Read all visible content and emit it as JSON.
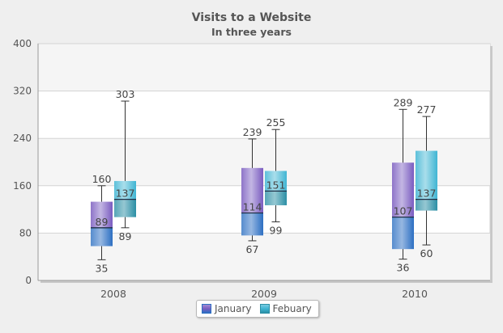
{
  "chart_data": {
    "type": "boxplot",
    "title": "Visits to a Website",
    "subtitle": "In three years",
    "xlabel": "",
    "ylabel": "",
    "ylim": [
      0,
      400
    ],
    "yticks": [
      0,
      80,
      160,
      240,
      320,
      400
    ],
    "categories": [
      "2008",
      "2009",
      "2010"
    ],
    "grid": true,
    "legend_position": "bottom-center",
    "series": [
      {
        "name": "January",
        "color": "#7a5cc0",
        "median_color": "#2c6fc2",
        "boxes": [
          {
            "min": 35,
            "q1": 58,
            "median": 89,
            "q3": 133,
            "max": 160
          },
          {
            "min": 67,
            "q1": 76,
            "median": 114,
            "q3": 190,
            "max": 239
          },
          {
            "min": 36,
            "q1": 53,
            "median": 107,
            "q3": 199,
            "max": 289
          }
        ]
      },
      {
        "name": "Febuary",
        "color": "#3fb5d3",
        "median_color": "#2b8fa5",
        "boxes": [
          {
            "min": 89,
            "q1": 107,
            "median": 137,
            "q3": 168,
            "max": 303
          },
          {
            "min": 99,
            "q1": 127,
            "median": 151,
            "q3": 185,
            "max": 255
          },
          {
            "min": 60,
            "q1": 118,
            "median": 137,
            "q3": 219,
            "max": 277
          }
        ]
      }
    ]
  }
}
